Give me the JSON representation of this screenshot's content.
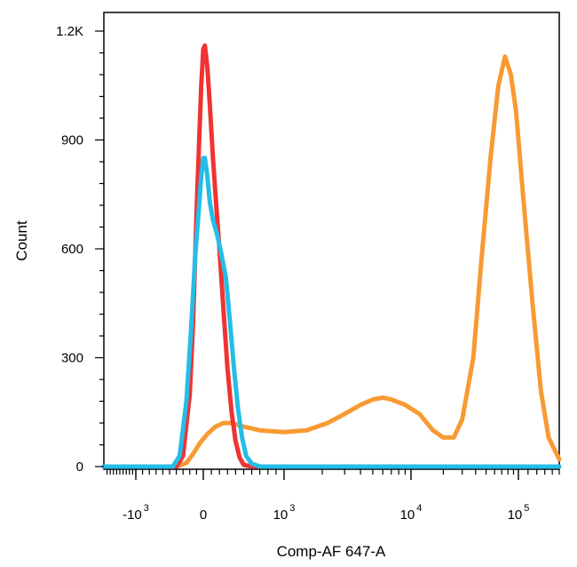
{
  "chart_data": {
    "type": "line",
    "xlabel": "Comp-AF 647-A",
    "ylabel": "Count",
    "x_scale": "biexponential",
    "xlim": [
      -2000,
      150000
    ],
    "ylim": [
      0,
      1200
    ],
    "y_ticks": [
      {
        "value": 0,
        "label": "0"
      },
      {
        "value": 300,
        "label": "300"
      },
      {
        "value": 600,
        "label": "600"
      },
      {
        "value": 900,
        "label": "900"
      },
      {
        "value": 1200,
        "label": "1.2K"
      }
    ],
    "x_ticks": [
      {
        "value": -1000,
        "base": "-10",
        "exp": "3"
      },
      {
        "value": 0,
        "base": "0",
        "exp": ""
      },
      {
        "value": 1000,
        "base": "10",
        "exp": "3"
      },
      {
        "value": 10000,
        "base": "10",
        "exp": "4"
      },
      {
        "value": 100000,
        "base": "10",
        "exp": "5"
      }
    ],
    "grid": false,
    "series": [
      {
        "color": "#f03333",
        "x": [
          -2000,
          -400,
          -300,
          -200,
          -150,
          -100,
          -60,
          -30,
          0,
          20,
          50,
          80,
          120,
          160,
          200,
          250,
          300,
          350,
          400,
          450,
          500,
          600,
          2000,
          150000
        ],
        "y": [
          0,
          0,
          30,
          200,
          400,
          700,
          900,
          1050,
          1150,
          1160,
          1100,
          1000,
          850,
          720,
          600,
          430,
          270,
          150,
          70,
          25,
          5,
          0,
          0,
          0
        ]
      },
      {
        "color": "#25bde8",
        "x": [
          -2000,
          -450,
          -350,
          -250,
          -180,
          -120,
          -70,
          -30,
          0,
          20,
          50,
          80,
          120,
          170,
          220,
          280,
          330,
          380,
          430,
          480,
          530,
          600,
          700,
          2000,
          150000
        ],
        "y": [
          0,
          0,
          30,
          180,
          380,
          580,
          700,
          800,
          850,
          850,
          800,
          730,
          680,
          640,
          590,
          520,
          400,
          270,
          160,
          80,
          30,
          8,
          0,
          0,
          0
        ]
      },
      {
        "color": "#f89a33",
        "x": [
          -2000,
          -400,
          -250,
          -150,
          -50,
          50,
          150,
          250,
          350,
          500,
          700,
          1000,
          1500,
          2200,
          3000,
          4000,
          5000,
          6000,
          7000,
          9000,
          12000,
          16000,
          20000,
          25000,
          30000,
          38000,
          45000,
          55000,
          65000,
          75000,
          85000,
          95000,
          105000,
          115000,
          125000,
          135000,
          150000
        ],
        "y": [
          0,
          0,
          10,
          35,
          65,
          90,
          110,
          120,
          120,
          110,
          100,
          95,
          100,
          120,
          145,
          170,
          185,
          190,
          185,
          170,
          145,
          100,
          80,
          80,
          130,
          300,
          560,
          850,
          1050,
          1130,
          1080,
          980,
          740,
          450,
          210,
          80,
          20
        ]
      }
    ]
  }
}
